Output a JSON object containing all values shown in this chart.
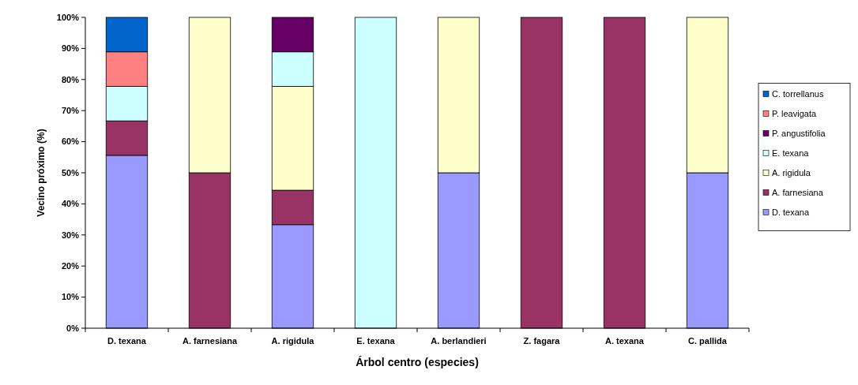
{
  "chart_data": {
    "type": "bar",
    "stacked": true,
    "xlabel": "Árbol centro (especies)",
    "ylabel": "Vecino próximo (%)",
    "categories": [
      "D. texana",
      "A. farnesiana",
      "A. rigidula",
      "E. texana",
      "A. berlandieri",
      "Z. fagara",
      "A. texana",
      "C. pallida"
    ],
    "series": [
      {
        "name": "D. texana",
        "color": "#9999ff",
        "values": [
          55.6,
          0,
          33.3,
          0,
          50,
          0,
          0,
          50
        ]
      },
      {
        "name": "A. farnesiana",
        "color": "#993366",
        "values": [
          11.1,
          50,
          11.1,
          0,
          0,
          100,
          100,
          0
        ]
      },
      {
        "name": "A. rigidula",
        "color": "#ffffcc",
        "values": [
          0,
          50,
          33.4,
          0,
          50,
          0,
          0,
          50
        ]
      },
      {
        "name": "E. texana",
        "color": "#ccffff",
        "values": [
          11.1,
          0,
          11.1,
          100,
          0,
          0,
          0,
          0
        ]
      },
      {
        "name": "P. angustifolia",
        "color": "#660066",
        "values": [
          0,
          0,
          11.1,
          0,
          0,
          0,
          0,
          0
        ]
      },
      {
        "name": "P. leavigata",
        "color": "#ff8080",
        "values": [
          11.1,
          0,
          0,
          0,
          0,
          0,
          0,
          0
        ]
      },
      {
        "name": "C. torrellanus",
        "color": "#0066cc",
        "values": [
          11.1,
          0,
          0,
          0,
          0,
          0,
          0,
          0
        ]
      }
    ],
    "ylim": [
      0,
      100
    ],
    "yticks": [
      {
        "value": 0,
        "label": "0%"
      },
      {
        "value": 10,
        "label": "10%"
      },
      {
        "value": 20,
        "label": "20%"
      },
      {
        "value": 30,
        "label": "30%"
      },
      {
        "value": 40,
        "label": "40%"
      },
      {
        "value": 50,
        "label": "50%"
      },
      {
        "value": 60,
        "label": "60%"
      },
      {
        "value": 70,
        "label": "70%"
      },
      {
        "value": 80,
        "label": "80%"
      },
      {
        "value": 90,
        "label": "90%"
      },
      {
        "value": 100,
        "label": "100%"
      }
    ],
    "grid": false,
    "legend": "right"
  }
}
